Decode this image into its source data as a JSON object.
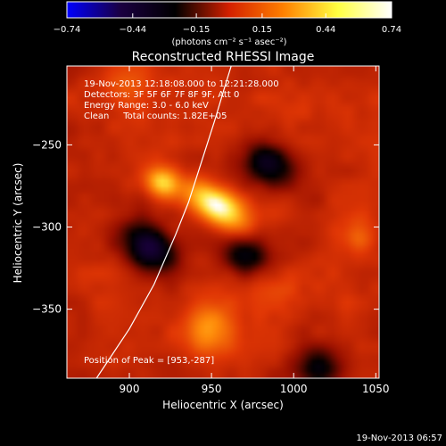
{
  "chart_data": {
    "type": "heatmap",
    "title": "Reconstructed RHESSI Image",
    "xlabel": "Heliocentric X (arcsec)",
    "ylabel": "Heliocentric Y (arcsec)",
    "xlim": [
      862,
      1052
    ],
    "ylim": [
      -392,
      -202
    ],
    "x_ticks": [
      {
        "value": 900,
        "label": "900"
      },
      {
        "value": 950,
        "label": "950"
      },
      {
        "value": 1000,
        "label": "1000"
      },
      {
        "value": 1050,
        "label": "1050"
      }
    ],
    "y_ticks": [
      {
        "value": -250,
        "label": "−250"
      },
      {
        "value": -300,
        "label": "−300"
      },
      {
        "value": -350,
        "label": "−350"
      }
    ],
    "colorbar": {
      "range": [
        -0.74,
        0.74
      ],
      "ticks": [
        {
          "value": -0.74,
          "label": "−0.74"
        },
        {
          "value": -0.44,
          "label": "−0.44"
        },
        {
          "value": -0.15,
          "label": "−0.15"
        },
        {
          "value": 0.15,
          "label": "0.15"
        },
        {
          "value": 0.44,
          "label": "0.44"
        },
        {
          "value": 0.74,
          "label": "0.74"
        }
      ],
      "unit_label": "(photons cm⁻² s⁻¹ asec⁻²)",
      "colors": [
        "#0000ff",
        "#1a0040",
        "#000000",
        "#d42000",
        "#ff8000",
        "#ffff40",
        "#ffffff"
      ]
    },
    "annotations": [
      "19-Nov-2013 12:18:08.000 to 12:21:28.000",
      "Detectors: 3F 5F 6F 7F 8F 9F, Att 0",
      "Energy Range: 3.0 - 6.0 keV",
      "Clean     Total counts: 1.82E+05"
    ],
    "peak_label": "Position of Peak = [953,-287]",
    "peak": [
      953,
      -287
    ],
    "limb_curve": [
      [
        880,
        -392
      ],
      [
        900,
        -362
      ],
      [
        915,
        -335
      ],
      [
        928,
        -305
      ],
      [
        936,
        -285
      ],
      [
        944,
        -260
      ],
      [
        952,
        -235
      ],
      [
        958,
        -215
      ],
      [
        962,
        -202
      ]
    ],
    "sources": [
      {
        "x": 953,
        "y": -287,
        "value": 0.74,
        "sx": 14,
        "sy": 7,
        "angle": -32
      },
      {
        "x": 920,
        "y": -273,
        "value": 0.55,
        "sx": 7,
        "sy": 6,
        "angle": -30
      },
      {
        "x": 948,
        "y": -363,
        "value": 0.42,
        "sx": 10,
        "sy": 10,
        "angle": 0
      },
      {
        "x": 1040,
        "y": -305,
        "value": 0.3,
        "sx": 7,
        "sy": 7,
        "angle": 0
      },
      {
        "x": 895,
        "y": -215,
        "value": 0.25,
        "sx": 12,
        "sy": 12,
        "angle": 0
      },
      {
        "x": 990,
        "y": -340,
        "value": 0.22,
        "sx": 12,
        "sy": 10,
        "angle": 0
      }
    ],
    "negative_regions": [
      {
        "x": 912,
        "y": -312,
        "value": -0.3,
        "sx": 12,
        "sy": 9,
        "angle": -35
      },
      {
        "x": 985,
        "y": -262,
        "value": -0.22,
        "sx": 11,
        "sy": 9,
        "angle": -30
      },
      {
        "x": 970,
        "y": -318,
        "value": -0.18,
        "sx": 9,
        "sy": 8,
        "angle": 0
      },
      {
        "x": 1015,
        "y": -385,
        "value": -0.15,
        "sx": 10,
        "sy": 8,
        "angle": 0
      }
    ]
  },
  "footer": {
    "timestamp": "19-Nov-2013 06:57"
  }
}
